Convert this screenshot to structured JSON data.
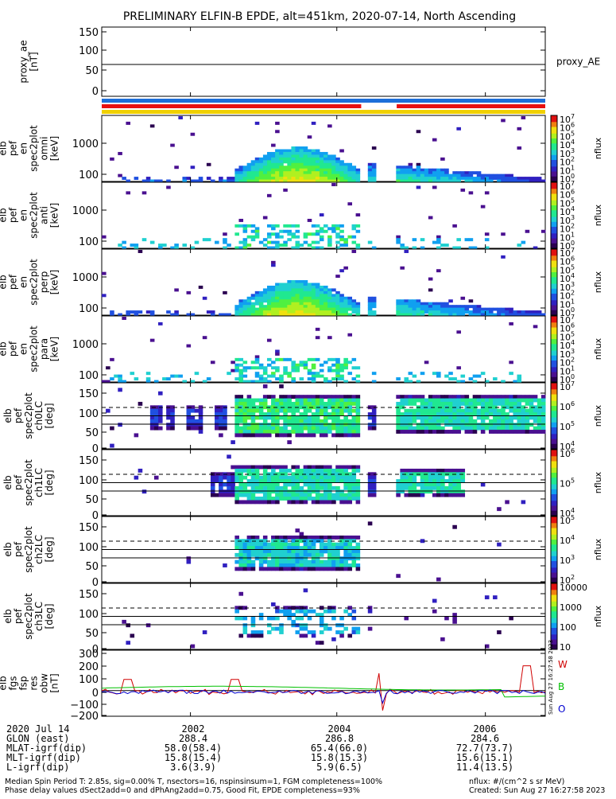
{
  "title": "PRELIMINARY ELFIN-B EPDE, alt=451km, 2020-07-14, North Ascending",
  "panels": [
    {
      "id": "proxy_ae",
      "ylabel": [
        "proxy_ae",
        "[nT]"
      ],
      "right_label": "proxy_AE",
      "yticks": [
        "150",
        "100",
        "50",
        "0"
      ],
      "cbar": null
    },
    {
      "id": "omni",
      "ylabel": [
        "elb",
        "pef",
        "en",
        "spec2plot",
        "omni",
        "[keV]"
      ],
      "yticks": [
        "1000",
        "100"
      ],
      "cbar": "flux8"
    },
    {
      "id": "anti",
      "ylabel": [
        "elb",
        "pef",
        "en",
        "spec2plot",
        "anti",
        "[keV]"
      ],
      "yticks": [
        "1000",
        "100"
      ],
      "cbar": "flux8"
    },
    {
      "id": "perp",
      "ylabel": [
        "elb",
        "pef",
        "en",
        "spec2plot",
        "perp",
        "[keV]"
      ],
      "yticks": [
        "1000",
        "100"
      ],
      "cbar": "flux8"
    },
    {
      "id": "para",
      "ylabel": [
        "elb",
        "pef",
        "en",
        "spec2plot",
        "para",
        "[keV]"
      ],
      "yticks": [
        "1000",
        "100"
      ],
      "cbar": "flux8"
    },
    {
      "id": "ch0LC",
      "ylabel": [
        "elb",
        "pef",
        "spec2plot",
        "ch0LC",
        "[deg]"
      ],
      "yticks": [
        "150",
        "100",
        "50",
        "0"
      ],
      "cbar": "flux4a"
    },
    {
      "id": "ch1LC",
      "ylabel": [
        "elb",
        "pef",
        "spec2plot",
        "ch1LC",
        "[deg]"
      ],
      "yticks": [
        "150",
        "100",
        "50",
        "0"
      ],
      "cbar": "flux3"
    },
    {
      "id": "ch2LC",
      "ylabel": [
        "elb",
        "pef",
        "spec2plot",
        "ch2LC",
        "[deg]"
      ],
      "yticks": [
        "150",
        "100",
        "50",
        "0"
      ],
      "cbar": "flux4b"
    },
    {
      "id": "ch3LC",
      "ylabel": [
        "elb",
        "pef",
        "spec2plot",
        "ch3LC",
        "[deg]"
      ],
      "yticks": [
        "150",
        "100",
        "50",
        "0"
      ],
      "cbar": "flux5"
    },
    {
      "id": "fgs",
      "ylabel": [
        "elb",
        "fgs",
        "fsp",
        "res",
        "obw",
        "[nT]"
      ],
      "yticks": [
        "300",
        "200",
        "100",
        "0",
        "−100",
        "−200"
      ],
      "cbar": null,
      "legend": [
        {
          "label": "W",
          "color": "#d00000"
        },
        {
          "label": "B",
          "color": "#00c000"
        },
        {
          "label": "O",
          "color": "#0000d0"
        }
      ],
      "stamp": "Sun Aug 27 16:27:58 2023"
    }
  ],
  "colorbars": {
    "flux8": {
      "label": "nflux",
      "ticks": [
        "10",
        "10",
        "10",
        "10",
        "10",
        "10",
        "10",
        "10"
      ],
      "exponents": [
        "7",
        "6",
        "5",
        "4",
        "3",
        "2",
        "1",
        "0"
      ]
    },
    "flux4a": {
      "label": "nflux",
      "ticks": [
        "10",
        "10",
        "10",
        "10"
      ],
      "exponents": [
        "7",
        "6",
        "5",
        "4"
      ]
    },
    "flux3": {
      "label": "nflux",
      "ticks": [
        "10",
        "10",
        "10"
      ],
      "exponents": [
        "6",
        "5",
        "4"
      ]
    },
    "flux4b": {
      "label": "nflux",
      "ticks": [
        "10",
        "10",
        "10",
        "10"
      ],
      "exponents": [
        "5",
        "4",
        "3",
        "2"
      ]
    },
    "flux5": {
      "label": "nflux",
      "ticks": [
        "10000",
        "1000",
        "100",
        "10"
      ],
      "exponents": [
        "",
        "",
        "",
        ""
      ]
    }
  },
  "bottom_table": {
    "rows": [
      {
        "label": "2020 Jul 14",
        "values": [
          "2002",
          "2004",
          "2006"
        ]
      },
      {
        "label": "GLON (east)",
        "values": [
          "288.4",
          "286.8",
          "284.6"
        ]
      },
      {
        "label": "MLAT-igrf(dip)",
        "values": [
          "58.0(58.4)",
          "65.4(66.0)",
          "72.7(73.7)"
        ]
      },
      {
        "label": "MLT-igrf(dip)",
        "values": [
          "15.8(15.4)",
          "15.8(15.3)",
          "15.6(15.1)"
        ]
      },
      {
        "label": "L-igrf(dip)",
        "values": [
          "3.6(3.9)",
          "5.9(6.5)",
          "11.4(13.5)"
        ]
      }
    ]
  },
  "footer": {
    "line1": "Median Spin Period T: 2.85s, sig=0.00% T, nsectors=16, nspinsinsum=1, FGM completeness=100%",
    "line2": "Phase delay values dSect2add=0 and dPhAng2add=0.75, Good Fit, EPDE completeness=93%",
    "right1": "nflux: #/(cm^2 s sr MeV)",
    "right2": "Created: Sun Aug 27 16:27:58 2023"
  },
  "chart_data": {
    "type": "heatmap",
    "x_ticks": [
      "2002",
      "2004",
      "2006"
    ],
    "proxy_ae": {
      "type": "line",
      "ylim": [
        -10,
        155
      ],
      "value": 66
    },
    "flag_bars": [
      {
        "color": "#1e6fd9",
        "segments": [
          [
            0,
            1
          ]
        ]
      },
      {
        "color": "#e81010",
        "segments": [
          [
            0,
            0.585
          ],
          [
            0.665,
            1
          ]
        ]
      },
      {
        "color": "#f0d000",
        "segments": [
          [
            0,
            1
          ]
        ]
      }
    ],
    "data_gaps": [
      [
        0.585,
        0.6
      ],
      [
        0.615,
        0.665
      ]
    ],
    "energy_spectra_keV": {
      "ylim": [
        70,
        7000
      ],
      "scale": "log",
      "panels": [
        "omni",
        "anti",
        "perp",
        "para"
      ]
    },
    "pitch_angle_deg": {
      "ylim": [
        0,
        180
      ],
      "reference_lines": [
        66,
        90,
        114
      ],
      "dashed_line": 114,
      "panels": [
        "ch0LC",
        "ch1LC",
        "ch2LC",
        "ch3LC"
      ]
    },
    "fgs_residuals_nT": {
      "ylim": [
        -230,
        310
      ],
      "series": [
        {
          "name": "W"
        },
        {
          "name": "B"
        },
        {
          "name": "O"
        }
      ]
    }
  }
}
